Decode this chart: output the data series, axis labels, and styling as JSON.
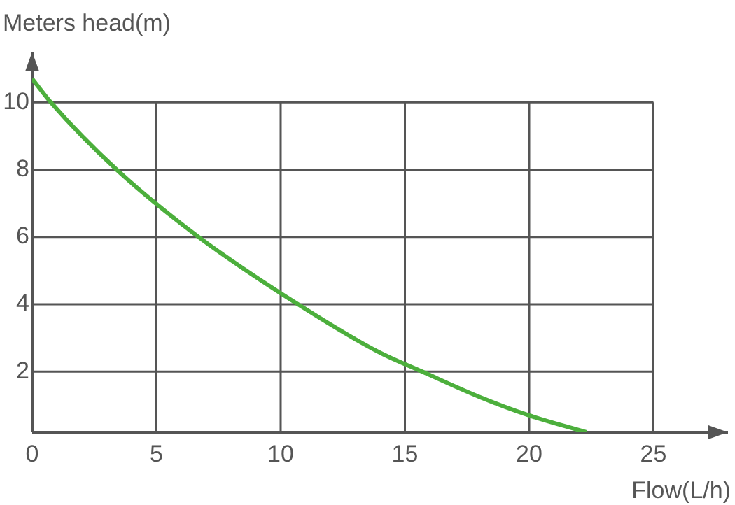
{
  "chart_data": {
    "type": "line",
    "xlabel": "Flow(L/h)",
    "ylabel": "Meters head(m)",
    "xlim": [
      0,
      28
    ],
    "ylim": [
      0.2,
      11.5
    ],
    "xticks": [
      0,
      5,
      10,
      15,
      20,
      25
    ],
    "yticks": [
      2,
      4,
      6,
      8,
      10
    ],
    "grid": true,
    "legend": false,
    "marker": "none",
    "line_style": "solid",
    "series": [
      {
        "color": "#4caf3c",
        "x": [
          0,
          0.75,
          3.4,
          6.7,
          10.7,
          13.9,
          15.7,
          18,
          20,
          22.3
        ],
        "values": [
          10.7,
          10,
          8,
          6,
          4,
          2.6,
          2,
          1.25,
          0.7,
          0.2
        ]
      }
    ]
  }
}
